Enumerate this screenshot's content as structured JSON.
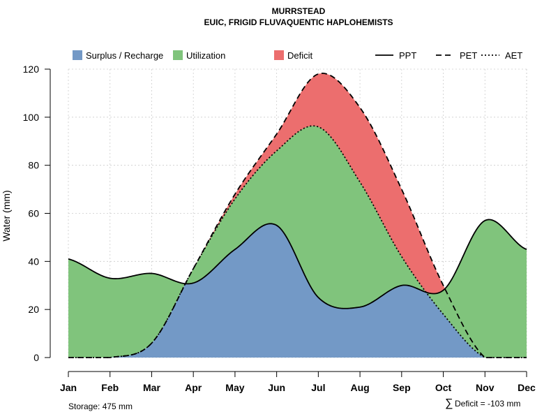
{
  "chart_data": {
    "type": "area",
    "title": "MURRSTEAD",
    "subtitle": "EUIC, FRIGID FLUVAQUENTIC HAPLOHEMISTS",
    "xlabel": "",
    "ylabel": "Water (mm)",
    "ylim": [
      0,
      120
    ],
    "yticks": [
      0,
      20,
      40,
      60,
      80,
      100,
      120
    ],
    "grid": true,
    "legend_position": "top",
    "categories": [
      "Jan",
      "Feb",
      "Mar",
      "Apr",
      "May",
      "Jun",
      "Jul",
      "Aug",
      "Sep",
      "Oct",
      "Nov",
      "Dec"
    ],
    "series": [
      {
        "name": "PPT",
        "style": "solid",
        "values": [
          41,
          33,
          35,
          31,
          45,
          55,
          25,
          21,
          30,
          28,
          57,
          45
        ]
      },
      {
        "name": "PET",
        "style": "dashed",
        "values": [
          0,
          0,
          6,
          37,
          68,
          93,
          118,
          104,
          70,
          30,
          0,
          0
        ]
      },
      {
        "name": "AET",
        "style": "dotted",
        "values": [
          0,
          0,
          6,
          37,
          66,
          86,
          96,
          73,
          42,
          18,
          0,
          0
        ]
      }
    ],
    "legend": [
      {
        "label": "Surplus / Recharge",
        "kind": "box",
        "color": "#7399c6"
      },
      {
        "label": "Utilization",
        "kind": "box",
        "color": "#80c47c"
      },
      {
        "label": "Deficit",
        "kind": "box",
        "color": "#ec6e6e"
      },
      {
        "label": "PPT",
        "kind": "line",
        "style": "solid"
      },
      {
        "label": "PET",
        "kind": "line",
        "style": "dashed"
      },
      {
        "label": "AET",
        "kind": "line",
        "style": "dotted"
      }
    ],
    "colors": {
      "surplus": "#7399c6",
      "utilization": "#80c47c",
      "deficit": "#ec6e6e"
    },
    "annotations": {
      "storage": "Storage: 475 mm",
      "deficit_symbol": "∑",
      "deficit": "Deficit = -103 mm"
    }
  }
}
